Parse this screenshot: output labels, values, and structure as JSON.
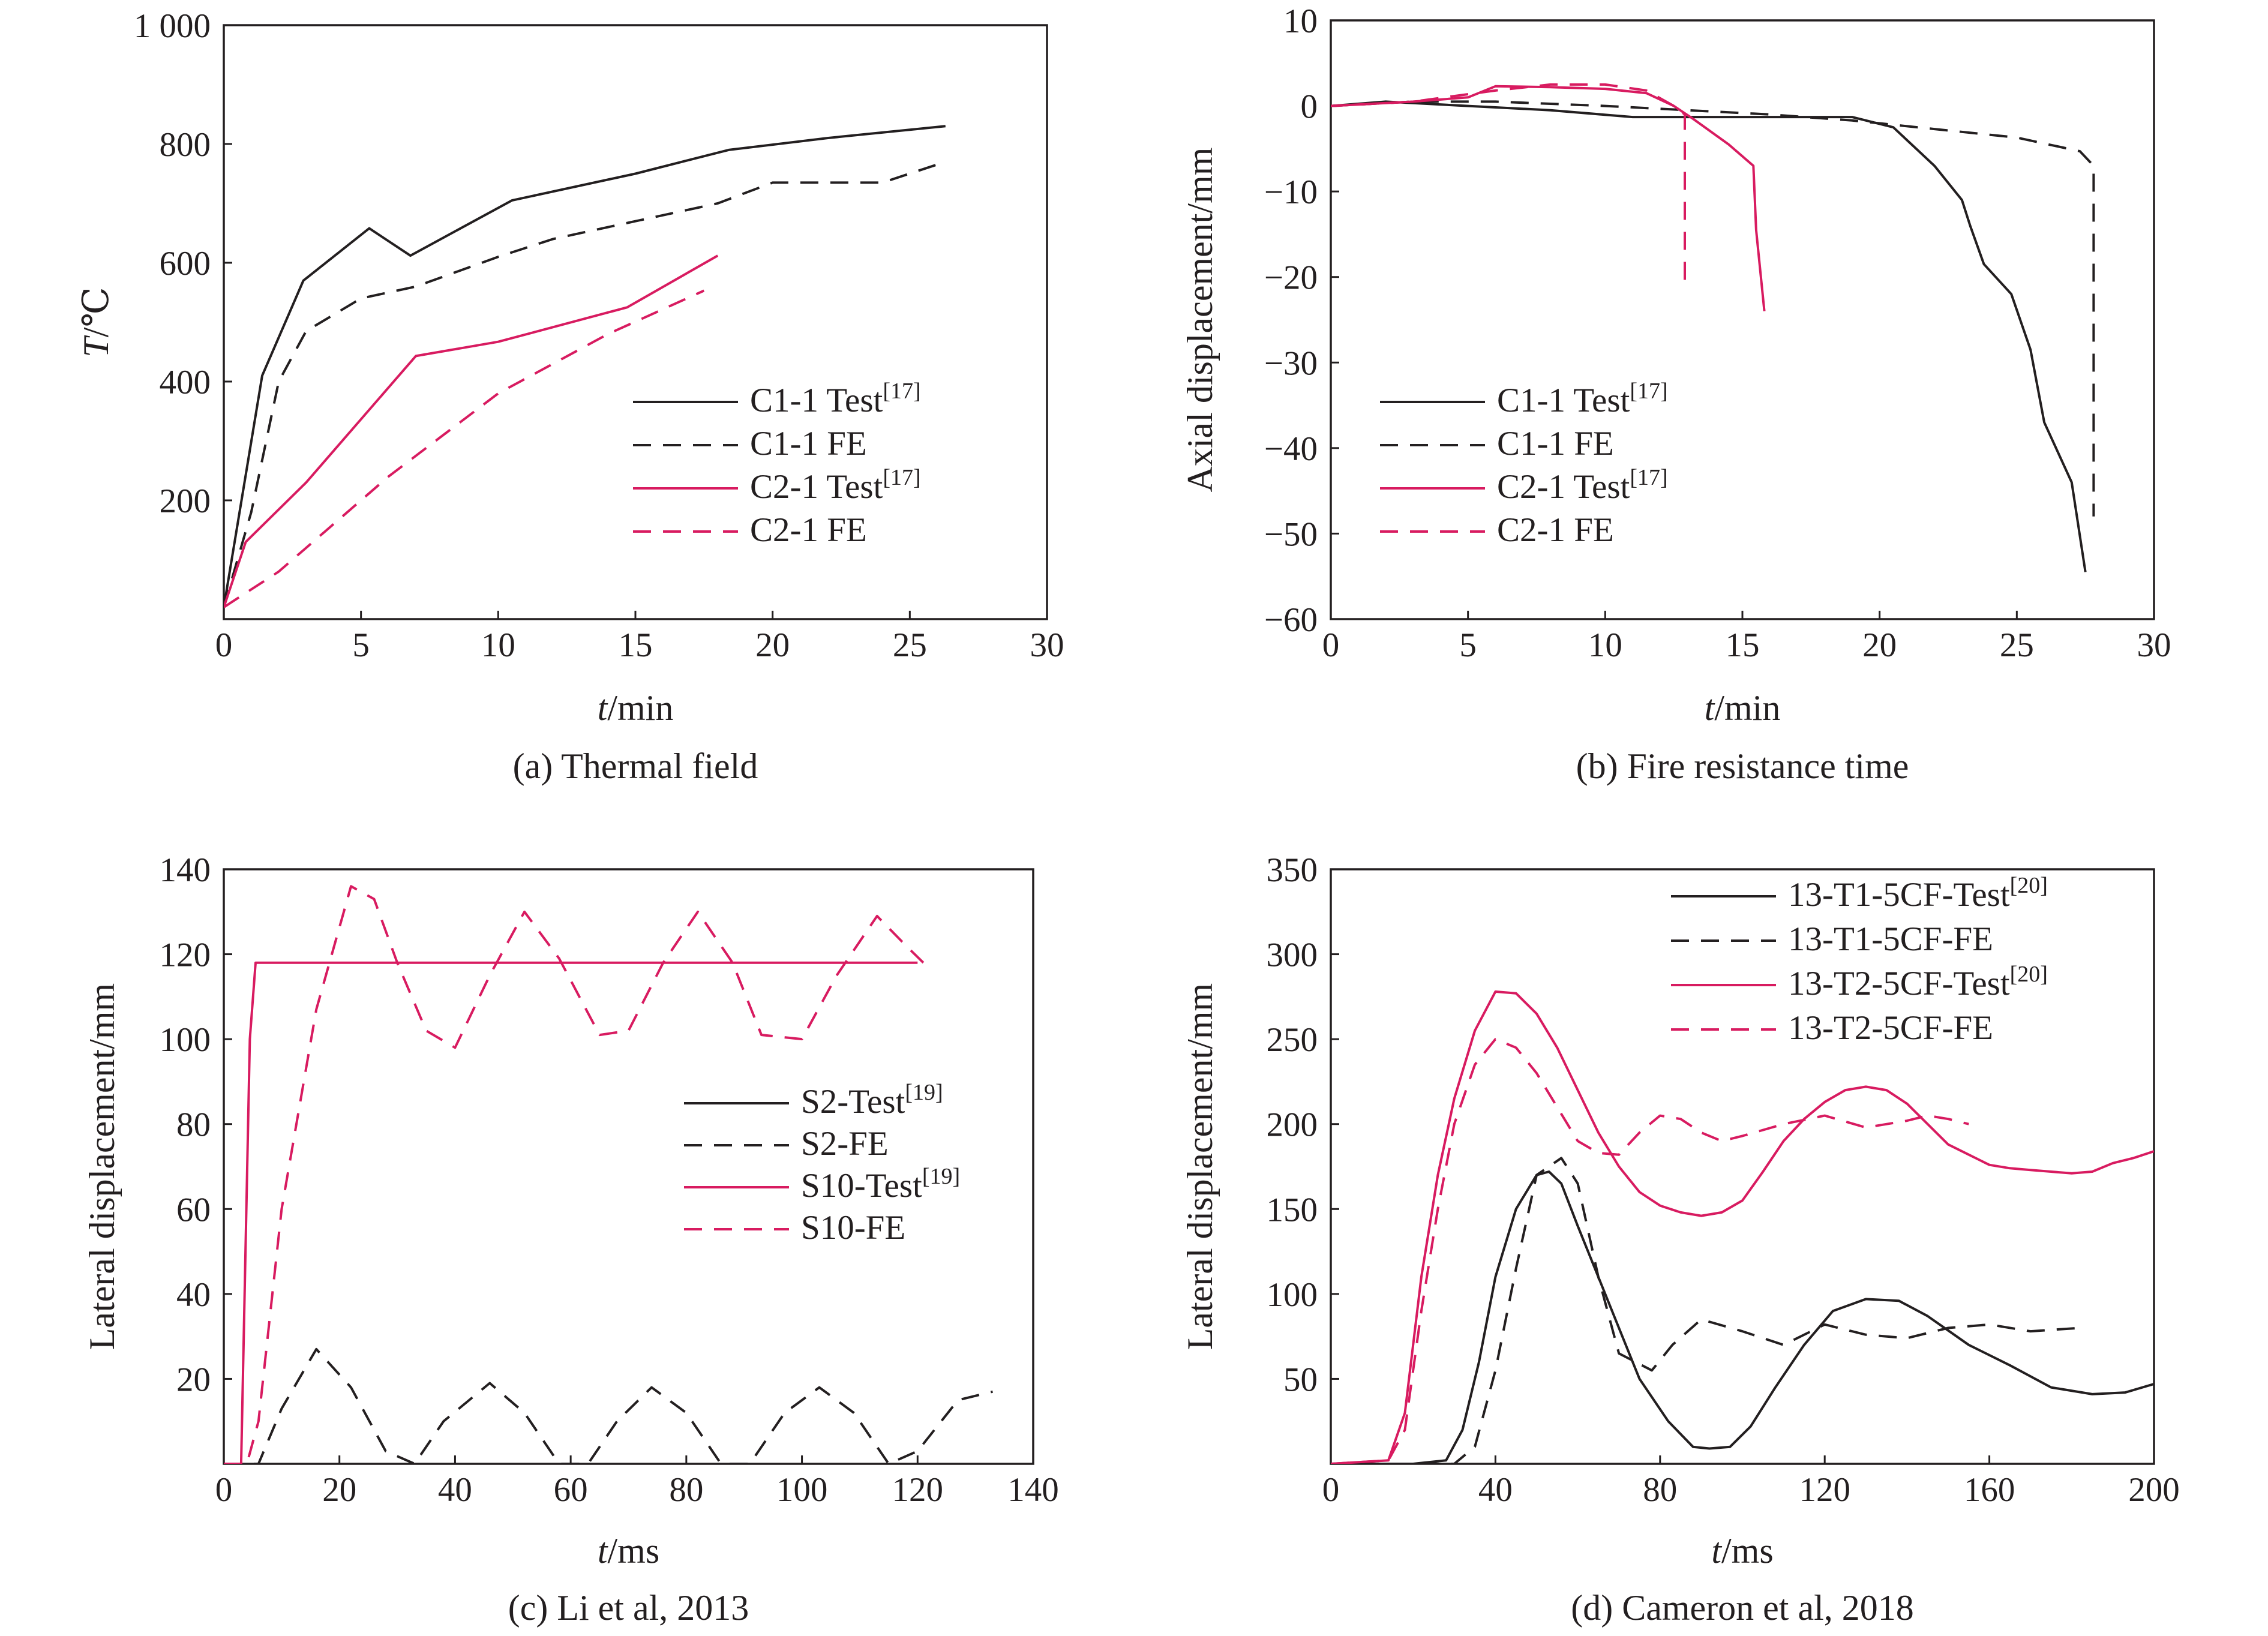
{
  "colors": {
    "black": "#231f20",
    "pink": "#d81b60",
    "ink": "#231f20"
  },
  "panels": [
    {
      "id": "a",
      "caption": "(a) Thermal field",
      "xlabel_italic": "t",
      "xlabel_unit": "/min",
      "ylabel_italic": "T",
      "ylabel_unit": "/℃",
      "xticks": [
        "0",
        "5",
        "10",
        "15",
        "20",
        "25",
        "30"
      ],
      "yticks": [
        "200",
        "400",
        "600",
        "800",
        "1 000"
      ],
      "legend": [
        {
          "text": "C1-1 Test",
          "sup": "[17]"
        },
        {
          "text": "C1-1 FE",
          "sup": ""
        },
        {
          "text": "C2-1 Test",
          "sup": "[17]"
        },
        {
          "text": "C2-1 FE",
          "sup": ""
        }
      ]
    },
    {
      "id": "b",
      "caption": "(b) Fire resistance time",
      "xlabel_italic": "t",
      "xlabel_unit": "/min",
      "ylabel": "Axial displacement/mm",
      "xticks": [
        "0",
        "5",
        "10",
        "15",
        "20",
        "25",
        "30"
      ],
      "yticks": [
        "10",
        "0",
        "−10",
        "−20",
        "−30",
        "−40",
        "−50",
        "−60"
      ],
      "legend": [
        {
          "text": "C1-1 Test",
          "sup": "[17]"
        },
        {
          "text": "C1-1 FE",
          "sup": ""
        },
        {
          "text": "C2-1 Test",
          "sup": "[17]"
        },
        {
          "text": "C2-1 FE",
          "sup": ""
        }
      ]
    },
    {
      "id": "c",
      "caption": "(c) Li et al, 2013",
      "xlabel_italic": "t",
      "xlabel_unit": "/ms",
      "ylabel": "Lateral displacement/mm",
      "xticks": [
        "0",
        "20",
        "40",
        "60",
        "80",
        "100",
        "120",
        "140"
      ],
      "yticks": [
        "20",
        "40",
        "60",
        "80",
        "100",
        "120",
        "140"
      ],
      "legend": [
        {
          "text": "S2-Test",
          "sup": "[19]"
        },
        {
          "text": "S2-FE",
          "sup": ""
        },
        {
          "text": "S10-Test",
          "sup": "[19]"
        },
        {
          "text": "S10-FE",
          "sup": ""
        }
      ]
    },
    {
      "id": "d",
      "caption": "(d) Cameron et al, 2018",
      "xlabel_italic": "t",
      "xlabel_unit": "/ms",
      "ylabel": "Lateral displacement/mm",
      "xticks": [
        "0",
        "40",
        "80",
        "120",
        "160",
        "200"
      ],
      "yticks": [
        "50",
        "100",
        "150",
        "200",
        "250",
        "300",
        "350"
      ],
      "legend": [
        {
          "text": "13-T1-5CF-Test",
          "sup": "[20]"
        },
        {
          "text": "13-T1-5CF-FE",
          "sup": ""
        },
        {
          "text": "13-T2-5CF-Test",
          "sup": "[20]"
        },
        {
          "text": "13-T2-5CF-FE",
          "sup": ""
        }
      ]
    }
  ],
  "chart_data": [
    {
      "type": "line",
      "xlabel": "t/min",
      "ylabel": "T/℃",
      "xlim": [
        0,
        30
      ],
      "ylim": [
        0,
        1000
      ],
      "series": [
        {
          "name": "C1-1 Test[17]",
          "color": "black",
          "dash": "solid",
          "x": [
            0,
            1.4,
            2.9,
            5.3,
            6.8,
            10.5,
            15,
            18.4,
            22,
            26.3
          ],
          "y": [
            20,
            410,
            570,
            658,
            612,
            705,
            750,
            790,
            810,
            830
          ]
        },
        {
          "name": "C1-1 FE",
          "color": "black",
          "dash": "dashed",
          "x": [
            0,
            1,
            2,
            3,
            5,
            7,
            10,
            12,
            15,
            18,
            20,
            22,
            24,
            26.3
          ],
          "y": [
            20,
            180,
            400,
            485,
            540,
            560,
            610,
            640,
            670,
            700,
            735,
            735,
            735,
            770
          ]
        },
        {
          "name": "C2-1 Test[17]",
          "color": "pink",
          "dash": "solid",
          "x": [
            0,
            0.8,
            3,
            7,
            10,
            14.7,
            18
          ],
          "y": [
            20,
            130,
            230,
            443,
            467,
            525,
            612
          ]
        },
        {
          "name": "C2-1 FE",
          "color": "pink",
          "dash": "dashed",
          "x": [
            0,
            2,
            6,
            10,
            14,
            17.5
          ],
          "y": [
            20,
            80,
            240,
            380,
            480,
            553
          ]
        }
      ]
    },
    {
      "type": "line",
      "xlabel": "t/min",
      "ylabel": "Axial displacement/mm",
      "xlim": [
        0,
        30
      ],
      "ylim": [
        -60,
        10
      ],
      "series": [
        {
          "name": "C1-1 Test[17]",
          "color": "black",
          "dash": "solid",
          "x": [
            0,
            2,
            5,
            8,
            11,
            15,
            19,
            20.5,
            22,
            23,
            23.3,
            23.8,
            24.8,
            25.5,
            26,
            27,
            27.5
          ],
          "y": [
            0,
            0.5,
            0,
            -0.5,
            -1.3,
            -1.3,
            -1.3,
            -2.5,
            -7,
            -11,
            -14,
            -18.5,
            -22,
            -28.5,
            -37,
            -44,
            -54.5
          ]
        },
        {
          "name": "C1-1 FE",
          "color": "black",
          "dash": "dashed",
          "x": [
            0,
            3,
            6,
            10,
            13,
            16,
            19,
            22,
            25,
            27.3,
            27.8,
            27.8
          ],
          "y": [
            0,
            0.5,
            0.5,
            0,
            -0.5,
            -1,
            -1.7,
            -2.7,
            -3.7,
            -5.3,
            -7,
            -48
          ]
        },
        {
          "name": "C2-1 Test[17]",
          "color": "pink",
          "dash": "solid",
          "x": [
            0,
            3,
            5,
            6,
            8,
            10,
            11.5,
            12.5,
            13.2,
            14.5,
            15.4,
            15.5,
            15.8
          ],
          "y": [
            0,
            0.5,
            1,
            2.3,
            2.2,
            2,
            1.5,
            0,
            -1.5,
            -4.5,
            -7,
            -14.5,
            -24
          ]
        },
        {
          "name": "C2-1 FE",
          "color": "pink",
          "dash": "dashed",
          "x": [
            0,
            3,
            6,
            8,
            10,
            11.5,
            12.5,
            12.9,
            12.9
          ],
          "y": [
            0,
            0.5,
            1.8,
            2.5,
            2.5,
            1.8,
            0,
            -1,
            -21
          ]
        }
      ]
    },
    {
      "type": "line",
      "xlabel": "t/ms",
      "ylabel": "Lateral displacement/mm",
      "xlim": [
        0,
        140
      ],
      "ylim": [
        0,
        140
      ],
      "series": [
        {
          "name": "S2-Test[19]",
          "color": "black",
          "dash": "solid",
          "x": [],
          "y": []
        },
        {
          "name": "S2-FE",
          "color": "black",
          "dash": "dashed",
          "x": [
            0,
            4,
            6,
            10,
            16,
            22,
            28,
            33,
            38,
            46,
            52,
            58,
            63,
            68,
            74,
            80,
            86,
            91,
            97,
            103,
            109,
            115,
            120,
            127,
            133
          ],
          "y": [
            0,
            0,
            0,
            13,
            27,
            18,
            3,
            0,
            10,
            19,
            12,
            0,
            0,
            10,
            18,
            12,
            0,
            0,
            12,
            18,
            12,
            0,
            3,
            15,
            17
          ]
        },
        {
          "name": "S10-Test[19]",
          "color": "pink",
          "dash": "solid",
          "x": [
            0,
            3,
            4.5,
            5.5,
            8,
            20,
            40,
            60,
            80,
            100,
            120
          ],
          "y": [
            0,
            0,
            100,
            118,
            118,
            118,
            118,
            118,
            118,
            118,
            118
          ]
        },
        {
          "name": "S10-FE",
          "color": "pink",
          "dash": "dashed",
          "x": [
            0,
            4,
            6,
            10,
            16,
            22,
            26,
            30,
            35,
            40,
            46,
            52,
            58,
            65,
            70,
            76,
            82,
            88,
            93,
            100,
            106,
            113,
            118,
            121
          ],
          "y": [
            0,
            0,
            10,
            60,
            107,
            136,
            133,
            118,
            102,
            98,
            115,
            130,
            119,
            101,
            102,
            118,
            130,
            118,
            101,
            100,
            115,
            129,
            122,
            118
          ]
        }
      ]
    },
    {
      "type": "line",
      "xlabel": "t/ms",
      "ylabel": "Lateral displacement/mm",
      "xlim": [
        0,
        200
      ],
      "ylim": [
        0,
        350
      ],
      "series": [
        {
          "name": "13-T1-5CF-Test[20]",
          "color": "black",
          "dash": "solid",
          "x": [
            0,
            20,
            28,
            32,
            36,
            40,
            45,
            50,
            53,
            56,
            60,
            65,
            70,
            75,
            82,
            88,
            92,
            97,
            102,
            108,
            115,
            122,
            130,
            138,
            145,
            155,
            165,
            175,
            185,
            193,
            200
          ],
          "y": [
            0,
            0,
            2,
            20,
            60,
            110,
            150,
            170,
            172,
            165,
            140,
            110,
            80,
            50,
            25,
            10,
            9,
            10,
            22,
            45,
            70,
            90,
            97,
            96,
            87,
            70,
            58,
            45,
            41,
            42,
            47
          ]
        },
        {
          "name": "13-T1-5CF-FE",
          "color": "black",
          "dash": "dashed",
          "x": [
            0,
            30,
            35,
            40,
            45,
            50,
            56,
            60,
            65,
            70,
            78,
            83,
            90,
            100,
            110,
            120,
            130,
            140,
            150,
            160,
            170,
            182
          ],
          "y": [
            0,
            0,
            10,
            55,
            115,
            170,
            180,
            165,
            110,
            65,
            55,
            70,
            85,
            78,
            70,
            82,
            76,
            74,
            80,
            82,
            78,
            80
          ]
        },
        {
          "name": "13-T2-5CF-Test[20]",
          "color": "pink",
          "dash": "solid",
          "x": [
            0,
            14,
            18,
            22,
            26,
            30,
            35,
            40,
            45,
            50,
            55,
            60,
            65,
            70,
            75,
            80,
            85,
            90,
            95,
            100,
            105,
            110,
            115,
            120,
            125,
            130,
            135,
            140,
            145,
            150,
            155,
            160,
            165,
            170,
            175,
            180,
            185,
            190,
            195,
            200
          ],
          "y": [
            0,
            2,
            30,
            110,
            170,
            215,
            255,
            278,
            277,
            265,
            245,
            220,
            195,
            175,
            160,
            152,
            148,
            146,
            148,
            155,
            172,
            190,
            203,
            213,
            220,
            222,
            220,
            212,
            200,
            188,
            182,
            176,
            174,
            173,
            172,
            171,
            172,
            177,
            180,
            184
          ]
        },
        {
          "name": "13-T2-5CF-FE",
          "color": "pink",
          "dash": "dashed",
          "x": [
            0,
            14,
            18,
            22,
            26,
            30,
            35,
            40,
            45,
            50,
            55,
            60,
            65,
            70,
            75,
            80,
            85,
            90,
            95,
            100,
            110,
            120,
            130,
            140,
            145,
            150,
            155
          ],
          "y": [
            0,
            2,
            20,
            90,
            150,
            200,
            235,
            250,
            245,
            230,
            210,
            190,
            183,
            182,
            195,
            205,
            203,
            195,
            190,
            193,
            200,
            205,
            198,
            202,
            205,
            203,
            200
          ]
        }
      ]
    }
  ]
}
